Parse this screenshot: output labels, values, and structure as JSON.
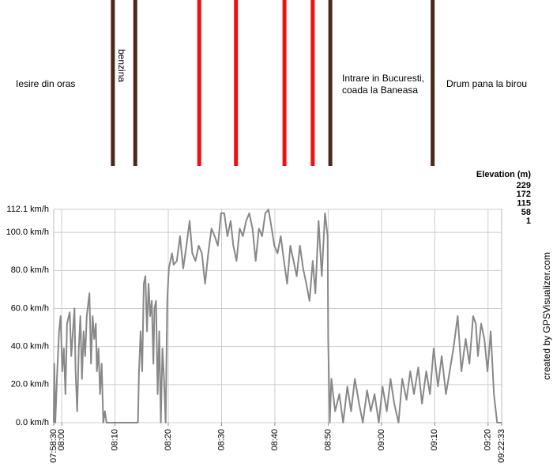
{
  "chart_data": {
    "type": "line",
    "color": "#888888",
    "x": [
      478.5,
      478.6,
      478.8,
      479.1,
      479.5,
      479.8,
      480.1,
      480.4,
      480.7,
      481.0,
      481.5,
      481.8,
      482.1,
      482.4,
      482.6,
      482.9,
      483.2,
      483.5,
      483.8,
      484.1,
      484.4,
      484.7,
      485.2,
      485.5,
      485.8,
      486.1,
      486.4,
      486.6,
      486.9,
      487.2,
      487.5,
      487.8,
      488.1,
      488.4,
      494.3,
      494.5,
      494.8,
      495.1,
      495.4,
      495.7,
      496.0,
      496.3,
      496.6,
      496.9,
      497.2,
      497.4,
      497.7,
      498.0,
      498.3,
      498.6,
      498.9,
      499.2,
      499.5,
      499.8,
      500.1,
      500.4,
      500.7,
      501.0,
      501.6,
      502.2,
      502.8,
      503.4,
      504.0,
      504.5,
      505.1,
      505.7,
      506.3,
      506.9,
      507.5,
      508.1,
      508.7,
      509.3,
      509.9,
      510.5,
      511.1,
      511.7,
      512.2,
      512.8,
      513.4,
      514.0,
      514.6,
      515.2,
      515.8,
      516.4,
      517.0,
      517.6,
      518.2,
      518.8,
      519.4,
      519.9,
      520.5,
      521.1,
      521.7,
      522.3,
      522.9,
      523.5,
      524.1,
      524.7,
      525.3,
      525.9,
      526.5,
      527.1,
      527.6,
      528.2,
      528.8,
      529.4,
      529.9,
      530.0,
      530.3,
      530.6,
      531.3,
      532.1,
      532.8,
      533.6,
      534.3,
      535.0,
      535.8,
      536.5,
      537.3,
      538.0,
      538.7,
      539.5,
      540.2,
      541.0,
      541.7,
      542.4,
      543.2,
      543.9,
      544.7,
      545.4,
      546.1,
      546.9,
      547.6,
      548.4,
      549.1,
      549.8,
      550.6,
      551.3,
      552.1,
      552.8,
      553.5,
      554.3,
      555.0,
      555.8,
      556.5,
      557.2,
      557.7,
      558.1,
      558.7,
      559.3,
      559.9,
      560.5,
      561.1,
      561.7,
      562.5
    ],
    "values": [
      0,
      31,
      0,
      23,
      48,
      56,
      27,
      39,
      15,
      52,
      58,
      35,
      48,
      60,
      27,
      6,
      39,
      56,
      23,
      48,
      35,
      56,
      68,
      31,
      56,
      44,
      52,
      27,
      39,
      15,
      31,
      0,
      6,
      0,
      0,
      27,
      48,
      27,
      73,
      77,
      48,
      73,
      56,
      64,
      31,
      60,
      64,
      15,
      48,
      0,
      39,
      23,
      0,
      64,
      81,
      85,
      89,
      83,
      85,
      98,
      81,
      93,
      106,
      89,
      85,
      93,
      89,
      73,
      89,
      102,
      98,
      93,
      110,
      110,
      98,
      106,
      93,
      85,
      102,
      98,
      106,
      110,
      102,
      85,
      102,
      98,
      110,
      112,
      102,
      93,
      89,
      98,
      85,
      73,
      93,
      85,
      77,
      93,
      81,
      73,
      64,
      85,
      68,
      106,
      77,
      110,
      98,
      44,
      0,
      23,
      6,
      15,
      0,
      19,
      6,
      23,
      10,
      0,
      17,
      6,
      15,
      0,
      19,
      6,
      23,
      10,
      0,
      23,
      12,
      27,
      15,
      29,
      10,
      27,
      15,
      39,
      19,
      35,
      15,
      27,
      39,
      56,
      27,
      44,
      31,
      56,
      52,
      35,
      52,
      44,
      27,
      48,
      15,
      0,
      0
    ],
    "xlim": [
      478.5,
      562.55
    ],
    "xticks": [
      {
        "value": 478.5,
        "label": "07:58:30"
      },
      {
        "value": 480,
        "label": "08:00"
      },
      {
        "value": 490,
        "label": "08:10"
      },
      {
        "value": 500,
        "label": "08:20"
      },
      {
        "value": 510,
        "label": "08:30"
      },
      {
        "value": 520,
        "label": "08:40"
      },
      {
        "value": 530,
        "label": "08:50"
      },
      {
        "value": 540,
        "label": "09:00"
      },
      {
        "value": 550,
        "label": "09:10"
      },
      {
        "value": 560,
        "label": "09:20"
      },
      {
        "value": 562.55,
        "label": "09:22:33"
      }
    ],
    "ylim": [
      0,
      112.1
    ],
    "yticks": [
      {
        "value": 0,
        "label": "0.0 km/h"
      },
      {
        "value": 20,
        "label": "20.0 km/h"
      },
      {
        "value": 40,
        "label": "40.0 km/h"
      },
      {
        "value": 60,
        "label": "60.0 km/h"
      },
      {
        "value": 80,
        "label": "80.0 km/h"
      },
      {
        "value": 100,
        "label": "100.0 km/h"
      },
      {
        "value": 112.1,
        "label": "112.1 km/h"
      }
    ],
    "grid": true,
    "markers": [
      {
        "x": 489.6,
        "color": "#4a2a1a"
      },
      {
        "x": 493.8,
        "color": "#4a2a1a"
      },
      {
        "x": 505.8,
        "color": "#ee1111"
      },
      {
        "x": 512.7,
        "color": "#ee1111"
      },
      {
        "x": 521.8,
        "color": "#ee1111"
      },
      {
        "x": 527.1,
        "color": "#ee1111"
      },
      {
        "x": 530.4,
        "color": "#4a2a1a"
      },
      {
        "x": 549.6,
        "color": "#4a2a1a"
      }
    ],
    "annotations": [
      [
        "Iesire din oras"
      ],
      [
        "benzina"
      ],
      [
        "Intrare in Bucuresti,",
        "coada la Baneasa"
      ],
      [
        "Drum pana la birou"
      ]
    ],
    "elevation_legend": {
      "title": "Elevation (m)",
      "levels": [
        {
          "value": 229,
          "color": "#cc00cc"
        },
        {
          "value": 172,
          "color": "#2233cc"
        },
        {
          "value": 115,
          "color": "#11dd99"
        },
        {
          "value": 58,
          "color": "#cccc00"
        },
        {
          "value": 1,
          "color": "#dd0000"
        }
      ]
    },
    "credit": "created by GPSVisualizer.com"
  }
}
